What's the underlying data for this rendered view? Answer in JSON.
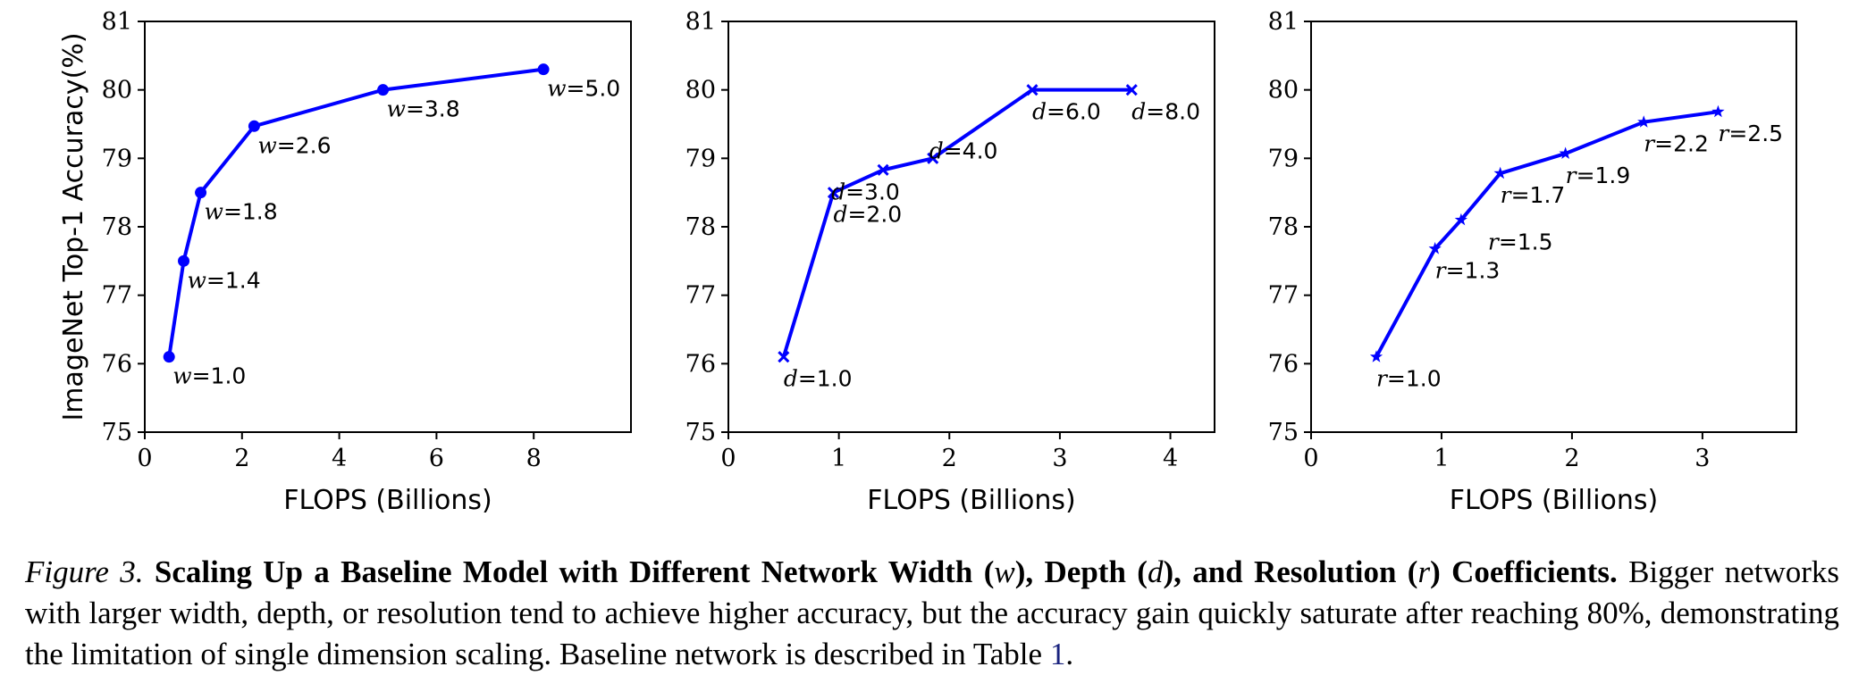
{
  "chart_data": [
    {
      "type": "line",
      "panel": "width",
      "title": "",
      "xlabel": "FLOPS (Billions)",
      "ylabel": "ImageNet Top-1 Accuracy(%)",
      "xlim": [
        0,
        10
      ],
      "ylim": [
        75,
        81
      ],
      "xticks": [
        0,
        2,
        4,
        6,
        8
      ],
      "yticks": [
        75,
        76,
        77,
        78,
        79,
        80,
        81
      ],
      "marker": "circle",
      "color": "#0000ff",
      "series": [
        {
          "name": "width",
          "x": [
            0.5,
            0.8,
            1.15,
            2.25,
            4.9,
            8.2
          ],
          "values": [
            76.1,
            77.5,
            78.5,
            79.47,
            80.0,
            80.3
          ],
          "labels": [
            {
              "var": "w",
              "text": "=1.0"
            },
            {
              "var": "w",
              "text": "=1.4"
            },
            {
              "var": "w",
              "text": "=1.8"
            },
            {
              "var": "w",
              "text": "=2.6"
            },
            {
              "var": "w",
              "text": "=3.8"
            },
            {
              "var": "w",
              "text": "=5.0"
            }
          ]
        }
      ]
    },
    {
      "type": "line",
      "panel": "depth",
      "title": "",
      "xlabel": "FLOPS (Billions)",
      "ylabel": "",
      "xlim": [
        0,
        4.4
      ],
      "ylim": [
        75,
        81
      ],
      "xticks": [
        0,
        1,
        2,
        3,
        4
      ],
      "yticks": [
        75,
        76,
        77,
        78,
        79,
        80,
        81
      ],
      "marker": "x",
      "color": "#0000ff",
      "series": [
        {
          "name": "depth",
          "x": [
            0.5,
            0.95,
            1.4,
            1.85,
            2.75,
            3.65
          ],
          "values": [
            76.1,
            78.5,
            78.83,
            79.0,
            80.0,
            80.0
          ],
          "labels": [
            {
              "var": "d",
              "text": "=1.0"
            },
            {
              "var": "d",
              "text": "=2.0"
            },
            {
              "var": "d",
              "text": "=3.0"
            },
            {
              "var": "d",
              "text": "=4.0"
            },
            {
              "var": "d",
              "text": "=6.0"
            },
            {
              "var": "d",
              "text": "=8.0"
            }
          ]
        }
      ]
    },
    {
      "type": "line",
      "panel": "resolution",
      "title": "",
      "xlabel": "FLOPS (Billions)",
      "ylabel": "",
      "xlim": [
        0,
        3.72
      ],
      "ylim": [
        75,
        81
      ],
      "xticks": [
        0,
        1,
        2,
        3
      ],
      "yticks": [
        75,
        76,
        77,
        78,
        79,
        80,
        81
      ],
      "marker": "star",
      "color": "#0000ff",
      "series": [
        {
          "name": "resolution",
          "x": [
            0.5,
            0.95,
            1.15,
            1.45,
            1.95,
            2.55,
            3.12
          ],
          "values": [
            76.1,
            77.68,
            78.1,
            78.78,
            79.07,
            79.53,
            79.68
          ],
          "labels": [
            {
              "var": "r",
              "text": "=1.0"
            },
            {
              "var": "r",
              "text": "=1.3"
            },
            {
              "var": "r",
              "text": "=1.5"
            },
            {
              "var": "r",
              "text": "=1.7"
            },
            {
              "var": "r",
              "text": "=1.9"
            },
            {
              "var": "r",
              "text": "=2.2"
            },
            {
              "var": "r",
              "text": "=2.5"
            }
          ]
        }
      ]
    }
  ],
  "caption": {
    "figure_label": "Figure 3.",
    "bold_a": "Scaling Up a Baseline Model with Different Network Width (",
    "var_w": "w",
    "bold_b": "), Depth (",
    "var_d": "d",
    "bold_c": "), and Resolution (",
    "var_r": "r",
    "bold_d": ") Coefficients.",
    "body": "Bigger networks with larger width, depth, or resolution tend to achieve higher accuracy, but the accuracy gain quickly saturate after reaching 80%, demonstrating the limitation of single dimension scaling. Baseline network is described in Table",
    "table_ref": "1",
    "end": "."
  }
}
